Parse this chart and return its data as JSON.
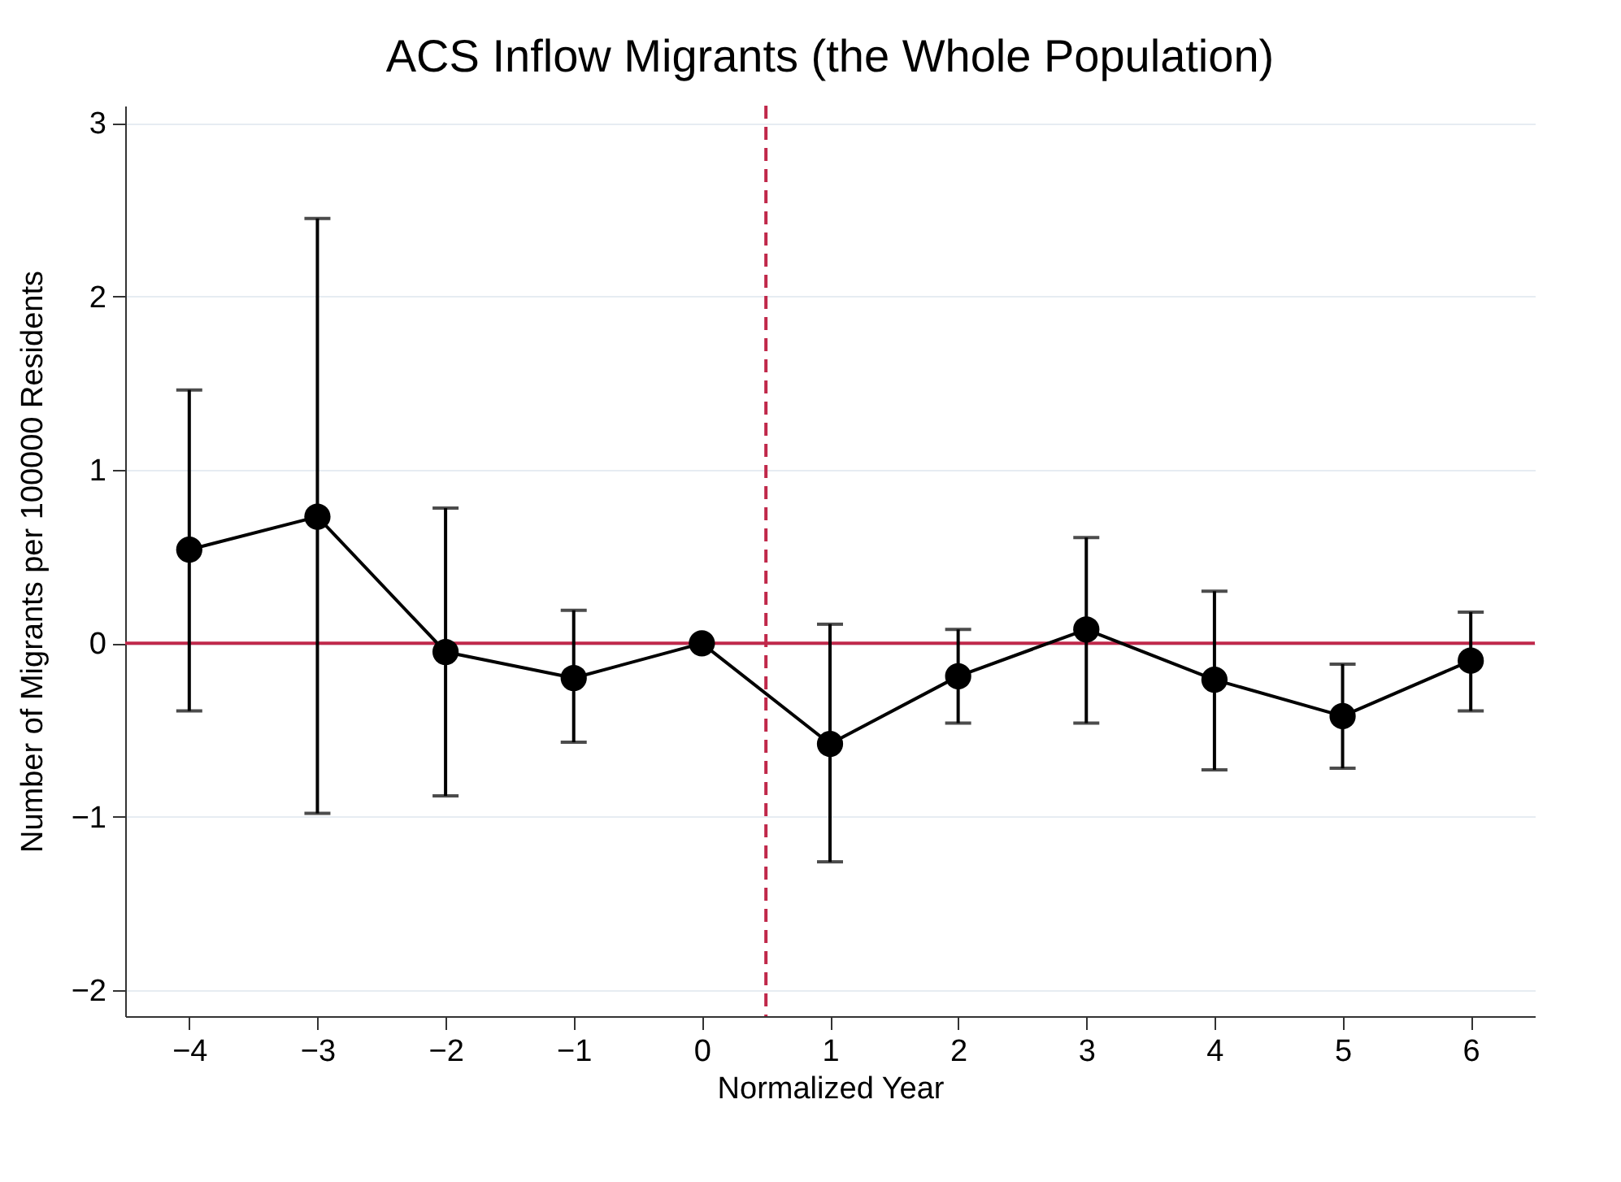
{
  "chart_data": {
    "type": "line",
    "title": "ACS Inflow Migrants (the Whole Population)",
    "xlabel": "Normalized Year",
    "ylabel": "Number of Migrants per 100000 Residents",
    "x": [
      -4,
      -3,
      -2,
      -1,
      0,
      1,
      2,
      3,
      4,
      5,
      6
    ],
    "series": [
      {
        "color": "#000000",
        "values": [
          0.54,
          0.73,
          -0.05,
          -0.2,
          0,
          -0.58,
          -0.19,
          0.08,
          -0.21,
          -0.42,
          -0.1
        ],
        "errors": [
          [
            -0.39,
            1.46
          ],
          [
            -0.98,
            2.45
          ],
          [
            -0.88,
            0.78
          ],
          [
            -0.57,
            0.19
          ],
          null,
          [
            -1.26,
            0.11
          ],
          [
            -0.46,
            0.08
          ],
          [
            -0.46,
            0.61
          ],
          [
            -0.73,
            0.3
          ],
          [
            -0.72,
            -0.12
          ],
          [
            -0.39,
            0.18
          ]
        ]
      }
    ],
    "marker": "circle",
    "line_style": "solid",
    "grid": "y",
    "xlim": [
      -4.5,
      6.5
    ],
    "xticks": [
      -4,
      -3,
      -2,
      -1,
      0,
      1,
      2,
      3,
      4,
      5,
      6
    ],
    "ylim": [
      -2.15,
      3.1
    ],
    "yticks": [
      -2,
      -1,
      0,
      1,
      2,
      3
    ],
    "ref_lines": [
      {
        "axis": "y",
        "value": 0,
        "color": "#c0284a",
        "line_style": "solid"
      },
      {
        "axis": "x",
        "value": 0.5,
        "color": "#c0284a",
        "line_style": "dashed"
      }
    ]
  }
}
